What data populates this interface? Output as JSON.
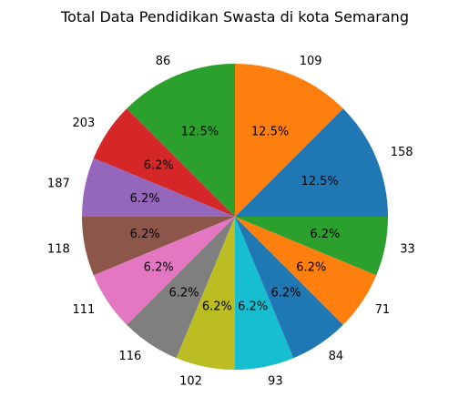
{
  "chart_data": {
    "type": "pie",
    "title": "Total Data Pendidikan Swasta di kota Semarang",
    "start_angle_deg": 0,
    "direction": "counterclockwise",
    "slices": [
      {
        "label": "158",
        "pct_label": "12.5%",
        "fraction": 0.125,
        "color": "#1f77b4"
      },
      {
        "label": "109",
        "pct_label": "12.5%",
        "fraction": 0.125,
        "color": "#ff7f0e"
      },
      {
        "label": "86",
        "pct_label": "12.5%",
        "fraction": 0.125,
        "color": "#2ca02c"
      },
      {
        "label": "203",
        "pct_label": "6.2%",
        "fraction": 0.0625,
        "color": "#d62728"
      },
      {
        "label": "187",
        "pct_label": "6.2%",
        "fraction": 0.0625,
        "color": "#9467bd"
      },
      {
        "label": "118",
        "pct_label": "6.2%",
        "fraction": 0.0625,
        "color": "#8c564b"
      },
      {
        "label": "111",
        "pct_label": "6.2%",
        "fraction": 0.0625,
        "color": "#e377c2"
      },
      {
        "label": "116",
        "pct_label": "6.2%",
        "fraction": 0.0625,
        "color": "#7f7f7f"
      },
      {
        "label": "102",
        "pct_label": "6.2%",
        "fraction": 0.0625,
        "color": "#bcbd22"
      },
      {
        "label": "93",
        "pct_label": "6.2%",
        "fraction": 0.0625,
        "color": "#17becf"
      },
      {
        "label": "84",
        "pct_label": "6.2%",
        "fraction": 0.0625,
        "color": "#1f77b4"
      },
      {
        "label": "71",
        "pct_label": "6.2%",
        "fraction": 0.0625,
        "color": "#ff7f0e"
      },
      {
        "label": "33",
        "pct_label": "6.2%",
        "fraction": 0.0625,
        "color": "#2ca02c"
      }
    ]
  }
}
